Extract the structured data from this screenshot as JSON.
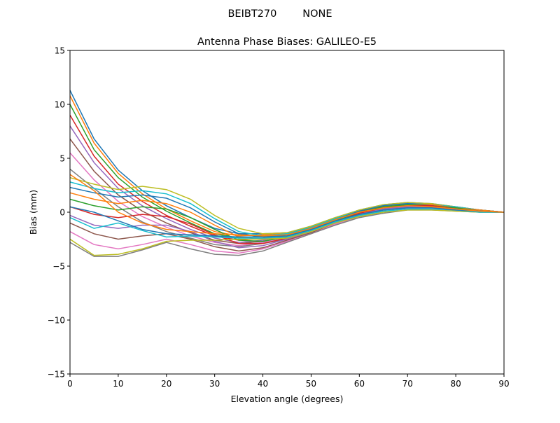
{
  "chart_data": {
    "type": "line",
    "suptitle": "BEIBT270        NONE",
    "title": "Antenna Phase Biases: GALILEO-E5",
    "xlabel": "Elevation angle (degrees)",
    "ylabel": "Bias (mm)",
    "xlim": [
      0,
      90
    ],
    "ylim": [
      -15,
      15
    ],
    "xticks": [
      0,
      10,
      20,
      30,
      40,
      50,
      60,
      70,
      80,
      90
    ],
    "yticks": [
      -15,
      -10,
      -5,
      0,
      5,
      10,
      15
    ],
    "ytick_labels": [
      "−15",
      "−10",
      "−5",
      "0",
      "5",
      "10",
      "15"
    ],
    "grid": false,
    "colors": [
      "#1f77b4",
      "#ff7f0e",
      "#2ca02c",
      "#d62728",
      "#9467bd",
      "#8c564b",
      "#e377c2",
      "#7f7f7f",
      "#bcbd22",
      "#17becf"
    ],
    "x": [
      0,
      5,
      10,
      15,
      20,
      25,
      30,
      35,
      40,
      45,
      50,
      55,
      60,
      65,
      70,
      75,
      80,
      85,
      90
    ],
    "series": [
      {
        "values": [
          11.3,
          6.8,
          3.9,
          2.0,
          0.6,
          -0.5,
          -1.5,
          -2.0,
          -2.0,
          -1.9,
          -1.3,
          -0.5,
          0.2,
          0.7,
          0.9,
          0.8,
          0.5,
          0.2,
          0
        ]
      },
      {
        "values": [
          10.8,
          6.4,
          3.6,
          1.7,
          0.3,
          -0.8,
          -1.8,
          -2.2,
          -2.1,
          -1.9,
          -1.4,
          -0.6,
          0.1,
          0.6,
          0.8,
          0.7,
          0.5,
          0.2,
          0
        ]
      },
      {
        "values": [
          10.0,
          5.8,
          3.2,
          1.4,
          0.1,
          -1.0,
          -2.0,
          -2.4,
          -2.2,
          -2.0,
          -1.4,
          -0.6,
          0.1,
          0.6,
          0.8,
          0.7,
          0.4,
          0.2,
          0
        ]
      },
      {
        "values": [
          9.0,
          5.2,
          2.6,
          1.0,
          -0.3,
          -1.3,
          -2.2,
          -2.6,
          -2.4,
          -2.1,
          -1.5,
          -0.7,
          0.0,
          0.5,
          0.7,
          0.7,
          0.4,
          0.2,
          0
        ]
      },
      {
        "values": [
          8.0,
          4.6,
          2.2,
          0.6,
          -0.6,
          -1.6,
          -2.4,
          -2.8,
          -2.6,
          -2.2,
          -1.6,
          -0.8,
          0.0,
          0.5,
          0.7,
          0.6,
          0.4,
          0.1,
          0
        ]
      },
      {
        "values": [
          6.8,
          3.8,
          1.6,
          0.1,
          -1.0,
          -1.9,
          -2.6,
          -2.9,
          -2.7,
          -2.3,
          -1.6,
          -0.8,
          -0.1,
          0.4,
          0.6,
          0.6,
          0.4,
          0.1,
          0
        ]
      },
      {
        "values": [
          5.5,
          3.0,
          1.0,
          -0.4,
          -1.4,
          -2.2,
          -2.8,
          -3.1,
          -2.8,
          -2.4,
          -1.7,
          -0.9,
          -0.1,
          0.4,
          0.6,
          0.5,
          0.3,
          0.1,
          0
        ]
      },
      {
        "values": [
          4.0,
          2.2,
          0.5,
          -0.9,
          -1.8,
          -2.4,
          -3.0,
          -3.2,
          -2.9,
          -2.5,
          -1.8,
          -0.9,
          -0.2,
          0.3,
          0.5,
          0.5,
          0.3,
          0.1,
          0
        ]
      },
      {
        "values": [
          3.2,
          2.6,
          2.1,
          2.4,
          2.1,
          1.2,
          -0.3,
          -1.5,
          -2.0,
          -1.9,
          -1.3,
          -0.5,
          0.2,
          0.7,
          0.9,
          0.8,
          0.5,
          0.2,
          0
        ]
      },
      {
        "values": [
          2.8,
          2.2,
          1.8,
          2.0,
          1.7,
          0.8,
          -0.6,
          -1.8,
          -2.2,
          -2.0,
          -1.4,
          -0.6,
          0.1,
          0.6,
          0.8,
          0.7,
          0.5,
          0.2,
          0
        ]
      },
      {
        "values": [
          2.3,
          1.8,
          1.4,
          1.6,
          1.3,
          0.4,
          -0.9,
          -2.0,
          -2.3,
          -2.1,
          -1.5,
          -0.7,
          0.1,
          0.6,
          0.8,
          0.7,
          0.4,
          0.2,
          0
        ]
      },
      {
        "values": [
          1.8,
          1.2,
          0.8,
          1.1,
          0.8,
          0.0,
          -1.2,
          -2.3,
          -2.5,
          -2.2,
          -1.5,
          -0.7,
          0.0,
          0.5,
          0.7,
          0.7,
          0.4,
          0.2,
          0
        ]
      },
      {
        "values": [
          1.2,
          0.6,
          0.2,
          0.5,
          0.3,
          -0.5,
          -1.6,
          -2.6,
          -2.7,
          -2.3,
          -1.6,
          -0.8,
          0.0,
          0.5,
          0.7,
          0.6,
          0.4,
          0.1,
          0
        ]
      },
      {
        "values": [
          0.5,
          -0.2,
          -0.5,
          -0.2,
          -0.4,
          -1.1,
          -2.1,
          -2.9,
          -2.9,
          -2.4,
          -1.7,
          -0.9,
          -0.1,
          0.4,
          0.6,
          0.6,
          0.3,
          0.1,
          0
        ]
      },
      {
        "values": [
          -0.3,
          -1.2,
          -1.5,
          -1.2,
          -1.2,
          -1.8,
          -2.7,
          -3.3,
          -3.1,
          -2.5,
          -1.8,
          -1.0,
          -0.2,
          0.3,
          0.5,
          0.5,
          0.3,
          0.1,
          0
        ]
      },
      {
        "values": [
          -1.0,
          -2.0,
          -2.5,
          -2.2,
          -2.0,
          -2.5,
          -3.2,
          -3.6,
          -3.3,
          -2.6,
          -1.9,
          -1.1,
          -0.3,
          0.2,
          0.4,
          0.4,
          0.2,
          0.1,
          0
        ]
      },
      {
        "values": [
          -1.8,
          -3.0,
          -3.4,
          -3.0,
          -2.5,
          -3.0,
          -3.6,
          -3.8,
          -3.4,
          -2.7,
          -2.0,
          -1.1,
          -0.4,
          0.1,
          0.3,
          0.3,
          0.2,
          0.0,
          0
        ]
      },
      {
        "values": [
          -2.8,
          -4.1,
          -4.1,
          -3.5,
          -2.8,
          -3.4,
          -3.9,
          -4.0,
          -3.6,
          -2.8,
          -2.0,
          -1.2,
          -0.5,
          -0.1,
          0.2,
          0.2,
          0.1,
          0.0,
          0
        ]
      },
      {
        "values": [
          -2.5,
          -4.0,
          -3.9,
          -3.4,
          -2.7,
          -2.6,
          -2.6,
          -2.5,
          -2.5,
          -2.4,
          -1.8,
          -1.0,
          -0.4,
          0.0,
          0.2,
          0.2,
          0.1,
          0.0,
          0
        ]
      },
      {
        "values": [
          -0.5,
          -1.5,
          -1.0,
          -1.7,
          -2.3,
          -2.2,
          -2.3,
          -2.4,
          -2.4,
          -2.3,
          -1.7,
          -0.9,
          -0.3,
          0.1,
          0.3,
          0.3,
          0.2,
          0.0,
          0
        ]
      },
      {
        "values": [
          0.5,
          0.0,
          -0.8,
          -1.6,
          -2.0,
          -2.1,
          -2.2,
          -2.3,
          -2.3,
          -2.2,
          -1.6,
          -0.8,
          -0.2,
          0.2,
          0.4,
          0.4,
          0.2,
          0.1,
          0
        ]
      },
      {
        "values": [
          3.5,
          2.0,
          0.0,
          -1.0,
          -1.6,
          -1.8,
          -2.0,
          -2.1,
          -2.2,
          -2.1,
          -1.5,
          -0.7,
          0.0,
          0.4,
          0.6,
          0.5,
          0.3,
          0.1,
          0
        ]
      }
    ]
  }
}
